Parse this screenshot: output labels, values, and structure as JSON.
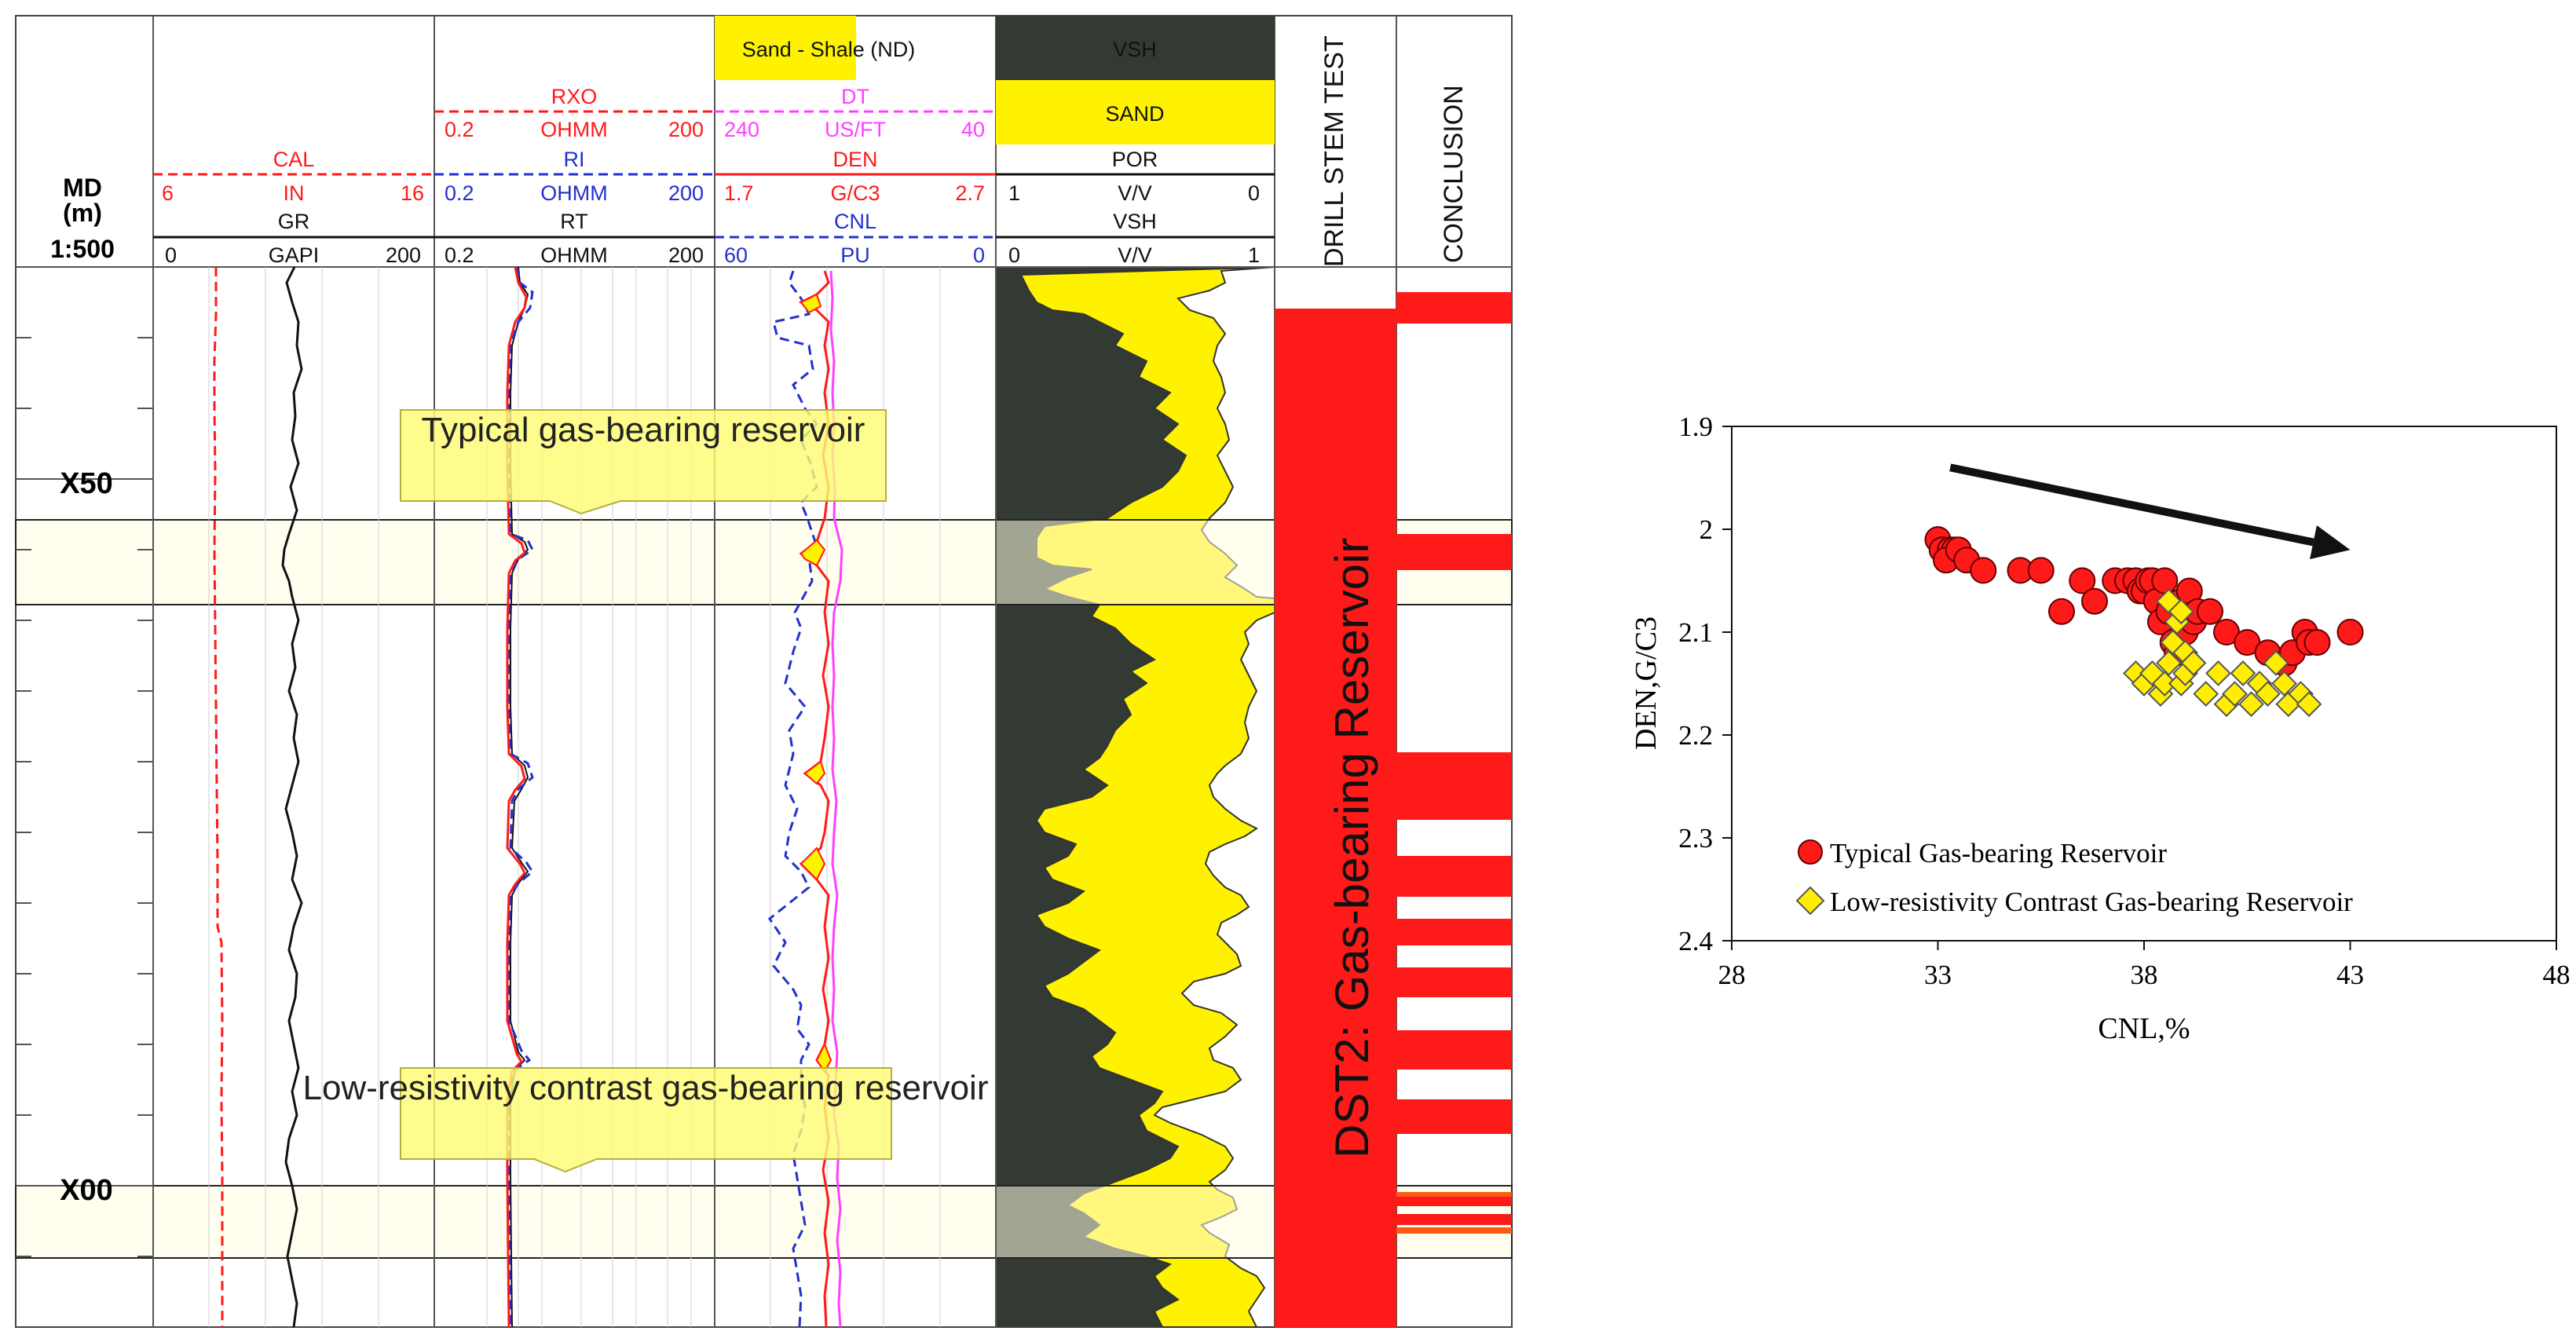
{
  "colors": {
    "gas_band": "#fffde2",
    "callout_fill": "#fdfb73",
    "shale": "#333a33",
    "sand": "#fff200",
    "red": "#ff1a1a",
    "orange": "#ff5a14",
    "blue": "#2230d0",
    "magenta": "#ff40ff"
  },
  "log_panel": {
    "depth_track": {
      "title": "MD",
      "unit": "(m)",
      "scale": "1:500",
      "depth_labels": [
        "X50",
        "X00"
      ]
    },
    "track1": {
      "cal": {
        "name": "CAL",
        "min": "6",
        "unit": "IN",
        "max": "16"
      },
      "gr": {
        "name": "GR",
        "min": "0",
        "unit": "GAPI",
        "max": "200"
      }
    },
    "track2": {
      "rxo": {
        "name": "RXO",
        "min": "0.2",
        "unit": "OHMM",
        "max": "200"
      },
      "ri": {
        "name": "RI",
        "min": "0.2",
        "unit": "OHMM",
        "max": "200"
      },
      "rt": {
        "name": "RT",
        "min": "0.2",
        "unit": "OHMM",
        "max": "200"
      }
    },
    "track3": {
      "fill_label": "Sand - Shale (ND)",
      "dt": {
        "name": "DT",
        "min": "240",
        "unit": "US/FT",
        "max": "40"
      },
      "den": {
        "name": "DEN",
        "min": "1.7",
        "unit": "G/C3",
        "max": "2.7"
      },
      "cnl": {
        "name": "CNL",
        "min": "60",
        "unit": "PU",
        "max": "0"
      }
    },
    "track4": {
      "vsh_fill": "VSH",
      "sand_fill": "SAND",
      "por": {
        "name": "POR",
        "min": "1",
        "unit": "V/V",
        "max": "0"
      },
      "vsh": {
        "name": "VSH",
        "min": "0",
        "unit": "V/V",
        "max": "1"
      }
    },
    "track5": {
      "header": "DRILL STEM TEST",
      "result": "DST2: Gas-bearing Reservoir"
    },
    "track6": {
      "header": "CONCLUSION"
    },
    "callouts": [
      "Typical gas-bearing reservoir",
      "Low-resistivity contrast gas-bearing reservoir"
    ]
  },
  "chart_data": {
    "type": "scatter",
    "title": "",
    "xlabel": "CNL,%",
    "ylabel": "DEN,G/C3",
    "xlim": [
      28,
      48
    ],
    "ylim": [
      2.4,
      1.9
    ],
    "y_inverted": true,
    "xticks": [
      "28",
      "33",
      "38",
      "43",
      "48"
    ],
    "yticks": [
      "1.9",
      "2",
      "2.1",
      "2.2",
      "2.3",
      "2.4"
    ],
    "grid": false,
    "legend_position": "bottom-left",
    "trend_arrow": {
      "from": [
        33.3,
        1.94
      ],
      "to": [
        43.0,
        2.02
      ]
    },
    "series": [
      {
        "name": "Typical Gas-bearing Reservoir",
        "marker": "circle",
        "color": "#ff1a1a",
        "x": [
          33.0,
          33.1,
          33.3,
          33.4,
          33.2,
          33.5,
          33.7,
          34.1,
          35.0,
          35.5,
          36.0,
          36.5,
          36.8,
          37.3,
          37.6,
          37.8,
          37.9,
          38.0,
          38.1,
          38.2,
          38.3,
          38.4,
          38.5,
          38.6,
          38.7,
          38.8,
          38.9,
          39.0,
          39.1,
          39.2,
          39.3,
          39.6,
          40.0,
          40.5,
          41.0,
          41.4,
          41.6,
          41.9,
          42.0,
          42.2,
          43.0
        ],
        "y": [
          2.01,
          2.02,
          2.02,
          2.02,
          2.03,
          2.02,
          2.03,
          2.04,
          2.04,
          2.04,
          2.08,
          2.05,
          2.07,
          2.05,
          2.05,
          2.05,
          2.06,
          2.06,
          2.05,
          2.05,
          2.07,
          2.09,
          2.05,
          2.08,
          2.11,
          2.12,
          2.07,
          2.1,
          2.06,
          2.09,
          2.08,
          2.08,
          2.1,
          2.11,
          2.12,
          2.13,
          2.12,
          2.1,
          2.11,
          2.11,
          2.1
        ]
      },
      {
        "name": "Low-resistivity Contrast Gas-bearing Reservoir",
        "marker": "diamond",
        "color": "#ffee00",
        "x": [
          37.8,
          38.0,
          38.2,
          38.4,
          38.5,
          38.6,
          38.7,
          38.8,
          38.9,
          39.0,
          39.0,
          39.2,
          39.5,
          39.8,
          40.0,
          40.2,
          40.4,
          40.6,
          40.8,
          41.0,
          41.2,
          41.4,
          41.5,
          41.8,
          42.0,
          38.6,
          38.9,
          39.2
        ],
        "y": [
          2.14,
          2.15,
          2.14,
          2.16,
          2.15,
          2.13,
          2.11,
          2.09,
          2.15,
          2.14,
          2.12,
          2.13,
          2.16,
          2.14,
          2.17,
          2.16,
          2.14,
          2.17,
          2.15,
          2.16,
          2.13,
          2.15,
          2.17,
          2.16,
          2.17,
          2.07,
          2.08,
          2.13
        ]
      }
    ]
  }
}
